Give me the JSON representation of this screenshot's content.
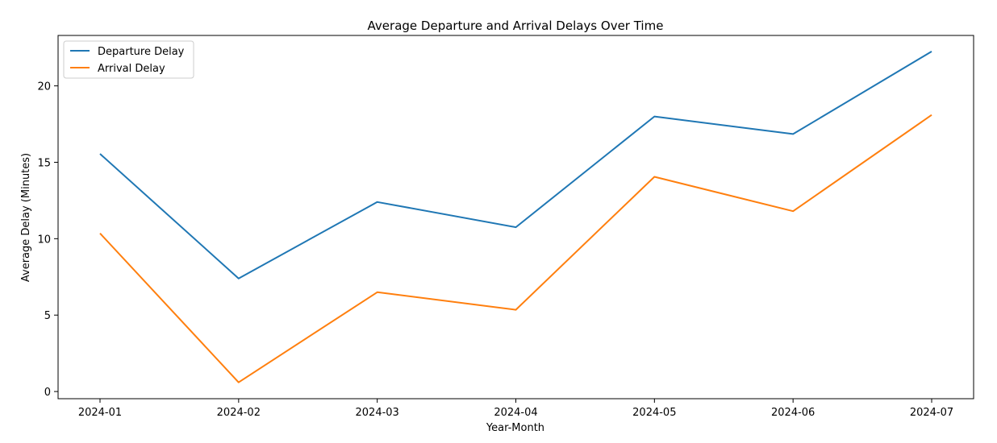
{
  "chart_data": {
    "type": "line",
    "title": "Average Departure and Arrival Delays Over Time",
    "xlabel": "Year-Month",
    "ylabel": "Average Delay (Minutes)",
    "categories": [
      "2024-01",
      "2024-02",
      "2024-03",
      "2024-04",
      "2024-05",
      "2024-06",
      "2024-07"
    ],
    "ylim": [
      -0.47,
      23.3
    ],
    "yticks": [
      0,
      5,
      10,
      15,
      20
    ],
    "grid": false,
    "legend_position": "top-left",
    "series": [
      {
        "name": "Departure Delay",
        "color": "#1f77b4",
        "values": [
          15.55,
          7.4,
          12.4,
          10.75,
          18.0,
          16.85,
          22.25
        ]
      },
      {
        "name": "Arrival Delay",
        "color": "#ff7f0e",
        "values": [
          10.35,
          0.6,
          6.5,
          5.35,
          14.05,
          11.8,
          18.1
        ]
      }
    ]
  }
}
